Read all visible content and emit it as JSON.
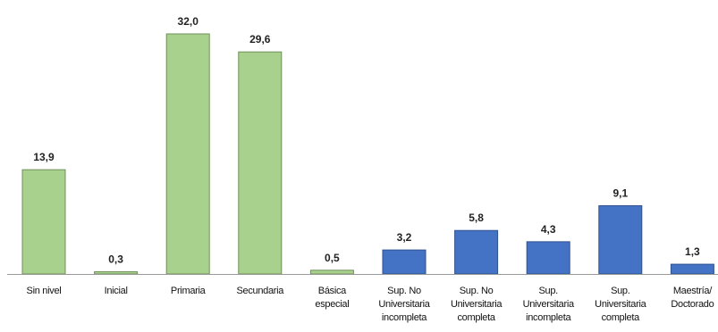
{
  "chart_data": {
    "type": "bar",
    "categories": [
      [
        "Sin nivel"
      ],
      [
        "Inicial"
      ],
      [
        "Primaria"
      ],
      [
        "Secundaria"
      ],
      [
        "Básica",
        "especial"
      ],
      [
        "Sup. No",
        "Universitaria",
        "incompleta"
      ],
      [
        "Sup. No",
        "Universitaria",
        "completa"
      ],
      [
        "Sup.",
        "Universitaria",
        "incompleta"
      ],
      [
        "Sup.",
        "Universitaria",
        "completa"
      ],
      [
        "Maestría/",
        "Doctorado"
      ]
    ],
    "values": [
      13.9,
      0.3,
      32.0,
      29.6,
      0.5,
      3.2,
      5.8,
      4.3,
      9.1,
      1.3
    ],
    "value_labels": [
      "13,9",
      "0,3",
      "32,0",
      "29,6",
      "0,5",
      "3,2",
      "5,8",
      "4,3",
      "9,1",
      "1,3"
    ],
    "ylim": [
      0,
      32
    ],
    "grid": false,
    "colors": {
      "group_a_fill": "#a9d18e",
      "group_a_stroke": "#6f8f58",
      "group_b_fill": "#4472c4",
      "group_b_stroke": "#2f528f",
      "axis": "#9a9a9a"
    },
    "color_groups": [
      "a",
      "a",
      "a",
      "a",
      "a",
      "b",
      "b",
      "b",
      "b",
      "b"
    ]
  }
}
